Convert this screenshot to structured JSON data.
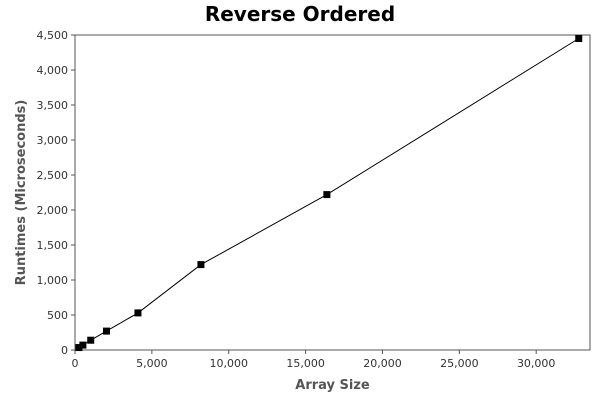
{
  "chart_data": {
    "type": "line",
    "title": "Reverse Ordered",
    "xlabel": "Array Size",
    "ylabel": "Runtimes (Microseconds)",
    "xlim": [
      0,
      33500
    ],
    "ylim": [
      0,
      4500
    ],
    "x_ticks": [
      0,
      5000,
      10000,
      15000,
      20000,
      25000,
      30000
    ],
    "x_tick_labels": [
      "0",
      "5,000",
      "10,000",
      "15,000",
      "20,000",
      "25,000",
      "30,000"
    ],
    "y_ticks": [
      0,
      500,
      1000,
      1500,
      2000,
      2500,
      3000,
      3500,
      4000,
      4500
    ],
    "y_tick_labels": [
      "0",
      "500",
      "1,000",
      "1,500",
      "2,000",
      "2,500",
      "3,000",
      "3,500",
      "4,000",
      "4,500"
    ],
    "grid": false,
    "colors": {
      "line": "#000000",
      "marker": "#000000",
      "frame": "#555555"
    },
    "series": [
      {
        "x": [
          256,
          512,
          1024,
          2048,
          4096,
          8192,
          16384,
          32768
        ],
        "y": [
          35,
          70,
          140,
          270,
          530,
          1220,
          2220,
          4450
        ]
      }
    ]
  }
}
